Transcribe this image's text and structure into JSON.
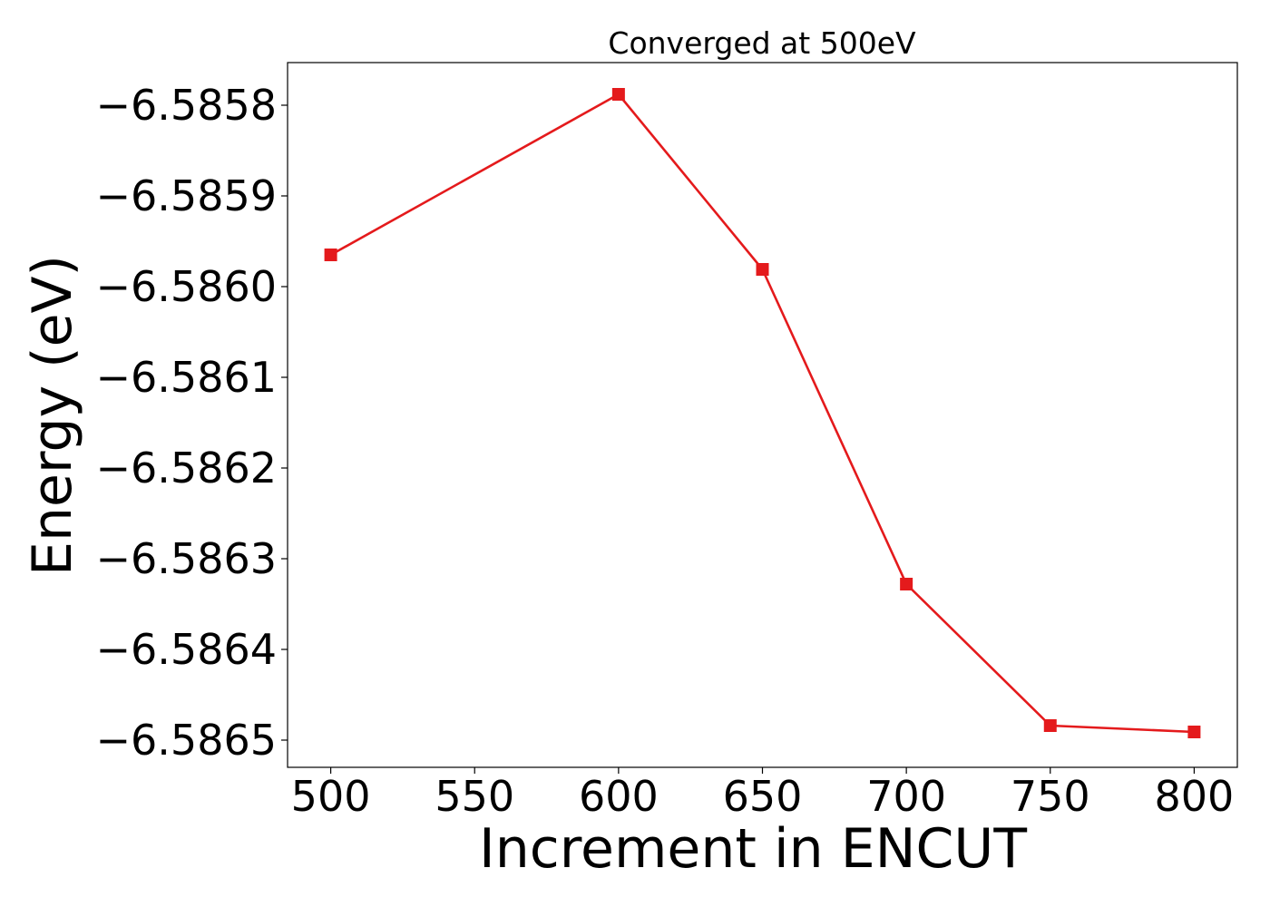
{
  "chart_data": {
    "type": "line",
    "title": "Converged at 500eV",
    "xlabel": "Increment in ENCUT",
    "ylabel": "Energy (eV)",
    "x": [
      500,
      600,
      650,
      700,
      750,
      800
    ],
    "series": [
      {
        "values": [
          -6.585965,
          -6.585788,
          -6.585981,
          -6.586328,
          -6.586484,
          -6.586491
        ],
        "color": "#e41a1c",
        "marker": "square"
      }
    ],
    "xlim": [
      485,
      815
    ],
    "ylim": [
      -6.58653,
      -6.585753
    ],
    "xticks": [
      500,
      550,
      600,
      650,
      700,
      750,
      800
    ],
    "xtick_labels": [
      "500",
      "550",
      "600",
      "650",
      "700",
      "750",
      "800"
    ],
    "yticks": [
      -6.5858,
      -6.5859,
      -6.586,
      -6.5861,
      -6.5862,
      -6.5863,
      -6.5864,
      -6.5865
    ],
    "ytick_labels": [
      "−6.5858",
      "−6.5859",
      "−6.5860",
      "−6.5861",
      "−6.5862",
      "−6.5863",
      "−6.5864",
      "−6.5865"
    ],
    "grid": false,
    "legend": "none"
  }
}
